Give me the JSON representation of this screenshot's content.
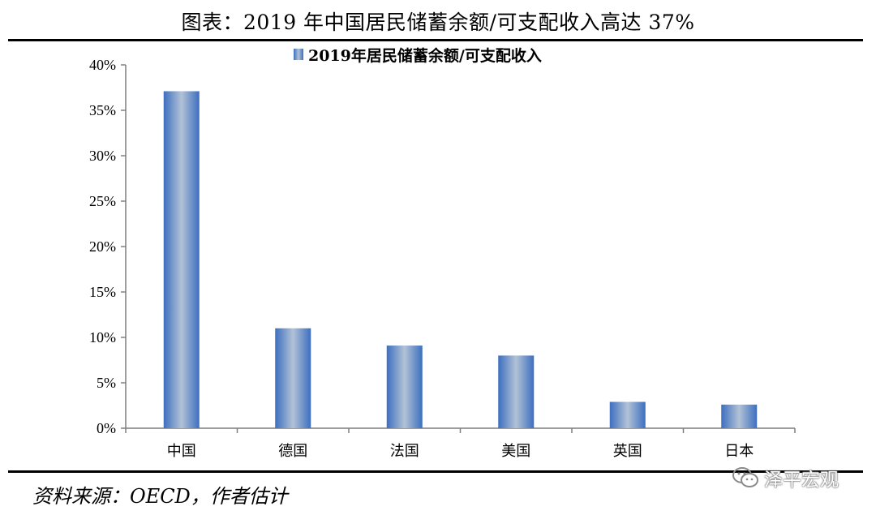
{
  "title": "图表：2019 年中国居民储蓄余额/可支配收入高达 37%",
  "source": "资料来源：OECD，作者估计",
  "watermark": {
    "text": "泽平宏观",
    "icon": "wechat-icon"
  },
  "colors": {
    "bar_edge": "#3c6fc0",
    "bar_center": "#b2c2d6"
  },
  "chart_data": {
    "type": "bar",
    "categories": [
      "中国",
      "德国",
      "法国",
      "美国",
      "英国",
      "日本"
    ],
    "series": [
      {
        "name": "2019年居民储蓄余额/可支配收入",
        "values": [
          37.1,
          11.0,
          9.1,
          8.0,
          2.9,
          2.6
        ]
      }
    ],
    "value_format": "percent",
    "ylim": [
      0,
      40
    ],
    "yticks": [
      0,
      5,
      10,
      15,
      20,
      25,
      30,
      35,
      40
    ],
    "ytick_labels": [
      "0%",
      "5%",
      "10%",
      "15%",
      "20%",
      "25%",
      "30%",
      "35%",
      "40%"
    ],
    "xlabel": "",
    "ylabel": "",
    "grid": false,
    "legend_position": "top"
  }
}
